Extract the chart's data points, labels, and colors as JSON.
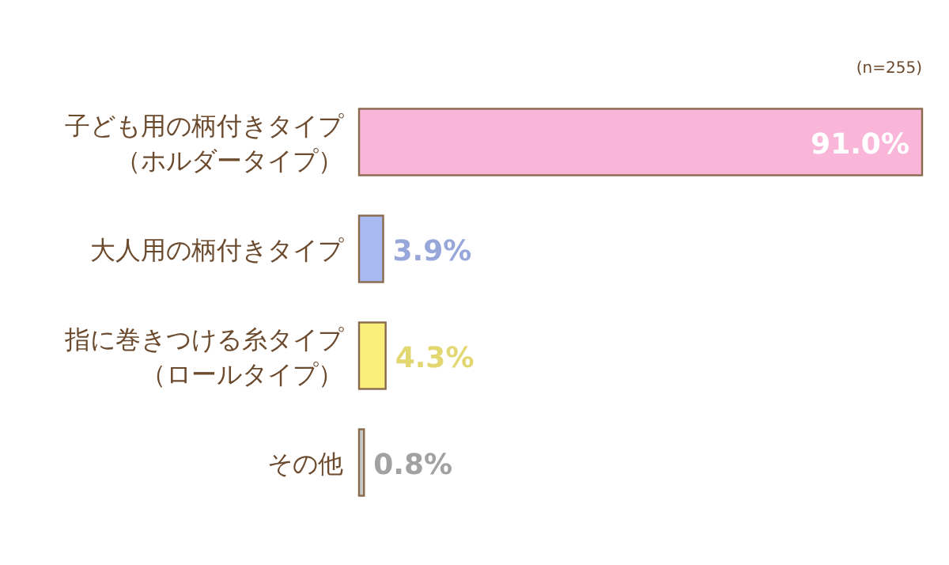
{
  "chart_data": {
    "type": "bar",
    "orientation": "horizontal",
    "categories": [
      "子ども用の柄付きタイプ（ホルダータイプ）",
      "大人用の柄付きタイプ",
      "指に巻きつける糸タイプ（ロールタイプ）",
      "その他"
    ],
    "values": [
      91.0,
      3.9,
      4.3,
      0.8
    ],
    "colors": [
      "#f9b6d8",
      "#a9b9f2",
      "#fbef7c",
      "#c9c9c9"
    ],
    "value_labels": [
      "91.0%",
      "3.9%",
      "4.3%",
      "0.8%"
    ],
    "annotations": [
      "(n=255)"
    ]
  }
}
